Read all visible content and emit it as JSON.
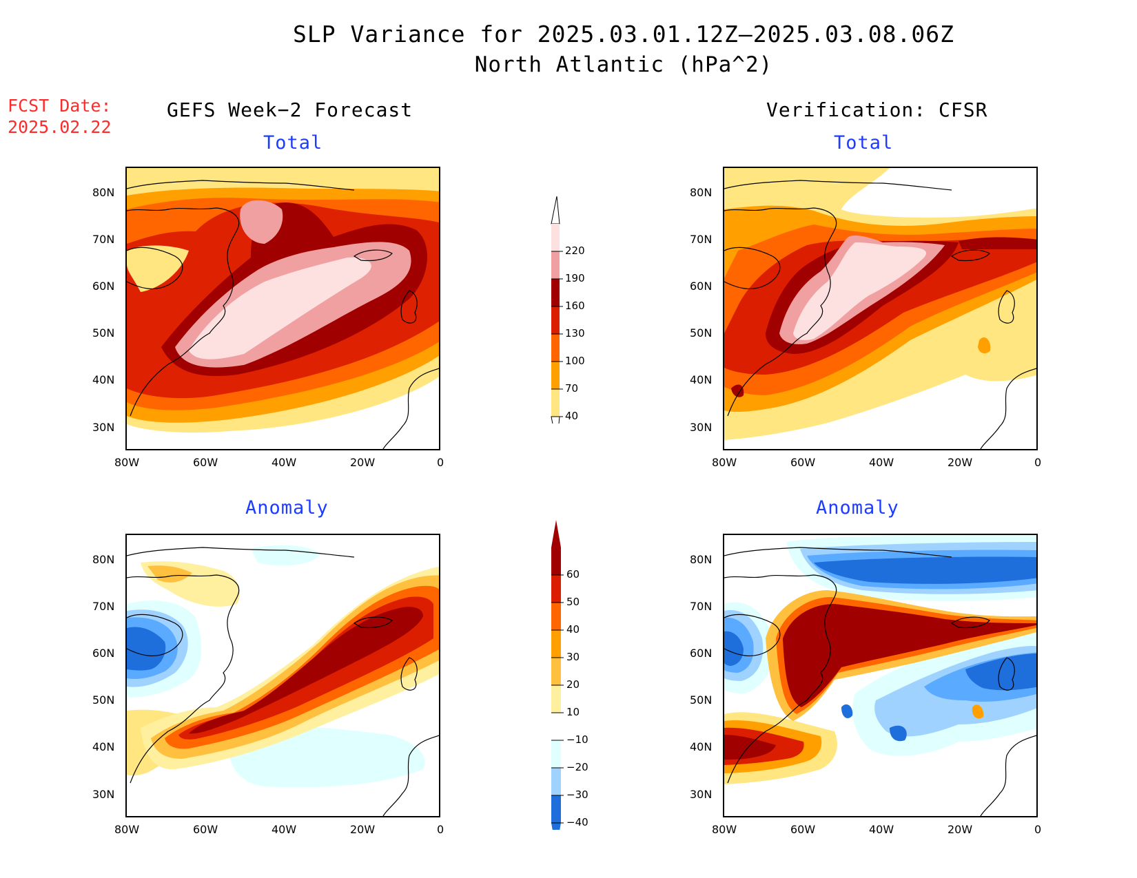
{
  "header": {
    "title": "SLP Variance for 2025.03.01.12Z–2025.03.08.06Z",
    "subtitle": "North Atlantic (hPa^2)",
    "fcst_line1": "FCST Date:",
    "fcst_line2": "2025.02.22",
    "left_column": "GEFS Week−2 Forecast",
    "right_column": "Verification: CFSR"
  },
  "panels": {
    "forecast_total": "Total",
    "verif_total": "Total",
    "forecast_anomaly": "Anomaly",
    "verif_anomaly": "Anomaly"
  },
  "axes": {
    "lat_labels": [
      "80N",
      "70N",
      "60N",
      "50N",
      "40N",
      "30N"
    ],
    "lon_labels": [
      "80W",
      "60W",
      "40W",
      "20W",
      "0"
    ]
  },
  "colorbar_total": {
    "levels": [
      "220",
      "190",
      "160",
      "130",
      "100",
      "70",
      "40"
    ],
    "colors": [
      "#fde0e0",
      "#f0a0a0",
      "#a00000",
      "#dc1e00",
      "#ff6600",
      "#ffa000",
      "#ffe680"
    ]
  },
  "colorbar_anomaly": {
    "levels": [
      "60",
      "50",
      "40",
      "30",
      "20",
      "10",
      "−10",
      "−20",
      "−30",
      "−40"
    ],
    "colors": [
      "#a00000",
      "#dc1e00",
      "#ff6600",
      "#ffa000",
      "#ffc040",
      "#fff0a0",
      "#ffffff",
      "#e0ffff",
      "#a0d2ff",
      "#5aaaff",
      "#1e6edc"
    ]
  }
}
